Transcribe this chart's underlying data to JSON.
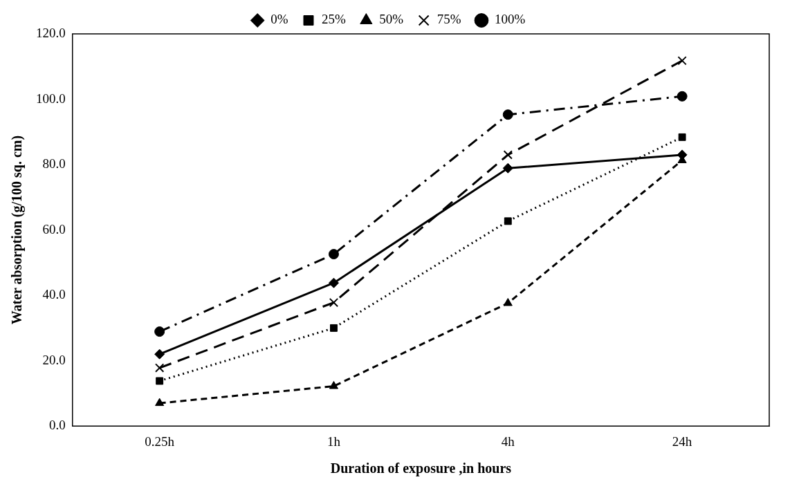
{
  "chart_data": {
    "type": "line",
    "xlabel": "Duration of exposure ,in hours",
    "ylabel": "Water absorption (g/100 sq. cm)",
    "categories": [
      "0.25h",
      "1h",
      "4h",
      "24h"
    ],
    "ylim": [
      0,
      120
    ],
    "yticks": [
      {
        "value": 0,
        "label": "0.0"
      },
      {
        "value": 20,
        "label": "20.0"
      },
      {
        "value": 40,
        "label": "40.0"
      },
      {
        "value": 60,
        "label": "60.0"
      },
      {
        "value": 80,
        "label": "80.0"
      },
      {
        "value": 100,
        "label": "100.0"
      },
      {
        "value": 120,
        "label": "120.0"
      }
    ],
    "grid": false,
    "legend": "top",
    "series": [
      {
        "name": "0%",
        "color": "#000000",
        "marker": "diamond",
        "line_style": "solid",
        "values": [
          22,
          43.8,
          78.9,
          83
        ]
      },
      {
        "name": "25%",
        "color": "#000000",
        "marker": "square",
        "line_style": "dotted",
        "values": [
          13.8,
          30,
          62.7,
          88.4
        ]
      },
      {
        "name": "50%",
        "color": "#000000",
        "marker": "triangle",
        "line_style": "dashed",
        "values": [
          7,
          12.2,
          37.6,
          81.3
        ]
      },
      {
        "name": "75%",
        "color": "#000000",
        "marker": "cross",
        "line_style": "longdash",
        "values": [
          17.8,
          37.8,
          83,
          111.8
        ]
      },
      {
        "name": "100%",
        "color": "#000000",
        "marker": "circle",
        "line_style": "dashdot",
        "values": [
          28.9,
          52.6,
          95.3,
          100.9
        ]
      }
    ]
  }
}
